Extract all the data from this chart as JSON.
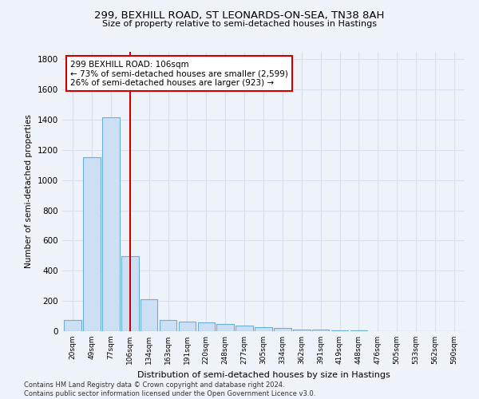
{
  "title": "299, BEXHILL ROAD, ST LEONARDS-ON-SEA, TN38 8AH",
  "subtitle": "Size of property relative to semi-detached houses in Hastings",
  "xlabel": "Distribution of semi-detached houses by size in Hastings",
  "ylabel": "Number of semi-detached properties",
  "categories": [
    "20sqm",
    "49sqm",
    "77sqm",
    "106sqm",
    "134sqm",
    "163sqm",
    "191sqm",
    "220sqm",
    "248sqm",
    "277sqm",
    "305sqm",
    "334sqm",
    "362sqm",
    "391sqm",
    "419sqm",
    "448sqm",
    "476sqm",
    "505sqm",
    "533sqm",
    "562sqm",
    "590sqm"
  ],
  "values": [
    72,
    1150,
    1415,
    495,
    210,
    75,
    62,
    60,
    48,
    35,
    25,
    20,
    12,
    8,
    5,
    3,
    2,
    1,
    0,
    0,
    0
  ],
  "bar_color": "#ccdff5",
  "bar_edge_color": "#6aaed6",
  "highlight_bar_index": 3,
  "highlight_color": "#cc0000",
  "annotation_text": "299 BEXHILL ROAD: 106sqm\n← 73% of semi-detached houses are smaller (2,599)\n26% of semi-detached houses are larger (923) →",
  "annotation_box_color": "#ffffff",
  "annotation_box_edge": "#cc0000",
  "ylim": [
    0,
    1850
  ],
  "yticks": [
    0,
    200,
    400,
    600,
    800,
    1000,
    1200,
    1400,
    1600,
    1800
  ],
  "footnote": "Contains HM Land Registry data © Crown copyright and database right 2024.\nContains public sector information licensed under the Open Government Licence v3.0.",
  "bg_color": "#eef2f9",
  "grid_color": "#d8e0ee"
}
